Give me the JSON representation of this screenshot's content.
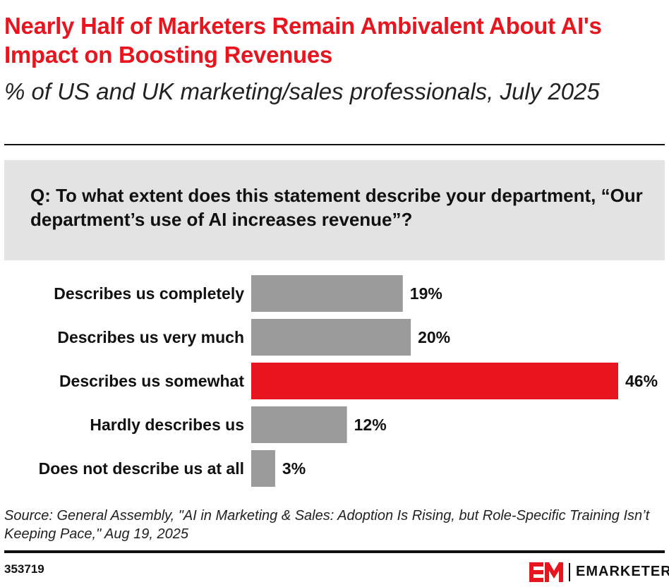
{
  "title": "Nearly Half of Marketers Remain Ambivalent About AI's Impact on Boosting Revenues",
  "subtitle": "% of US and UK marketing/sales professionals, July 2025",
  "question": "Q: To what extent does this statement describe your department, “Our department’s use of AI increases revenue”?",
  "source": "Source: General Assembly, \"AI in Marketing & Sales: Adoption Is Rising, but Role-Specific Training Isn’t Keeping Pace,\" Aug 19, 2025",
  "chart_id": "353719",
  "brand": {
    "name": "EMARKETER",
    "mark_color": "#e8141e"
  },
  "colors": {
    "accent": "#e8141e",
    "bar_default": "#9b9b9b",
    "bar_highlight": "#e8141e"
  },
  "chart_data": {
    "type": "bar",
    "orientation": "horizontal",
    "categories": [
      "Describes us completely",
      "Describes us very much",
      "Describes us somewhat",
      "Hardly describes us",
      "Does not describe us at all"
    ],
    "values": [
      19,
      20,
      46,
      12,
      3
    ],
    "value_labels": [
      "19%",
      "20%",
      "46%",
      "12%",
      "3%"
    ],
    "highlight_index": 2,
    "xlim": [
      0,
      46
    ],
    "grid": false,
    "legend": "none"
  }
}
